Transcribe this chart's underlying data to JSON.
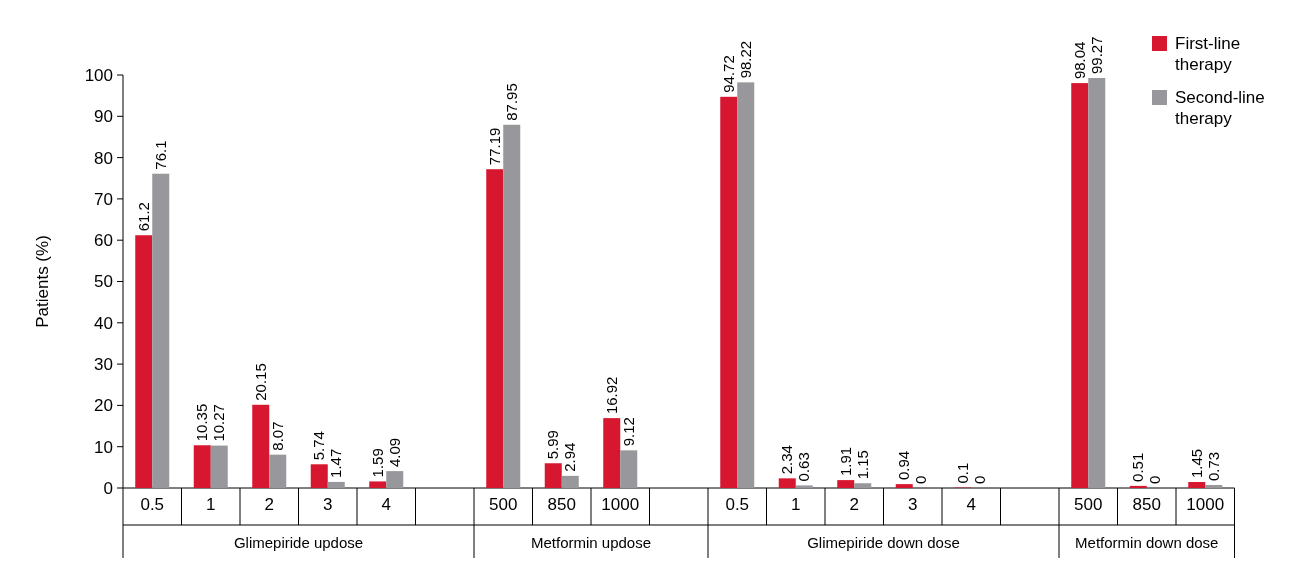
{
  "chart_data": {
    "type": "bar",
    "ylabel": "Patients (%)",
    "categories": [
      "0.5",
      "1",
      "2",
      "3",
      "4",
      null,
      "500",
      "850",
      "1000",
      null,
      "0.5",
      "1",
      "2",
      "3",
      "4",
      null,
      "500",
      "850",
      "1000"
    ],
    "series": [
      {
        "name": "First-line therapy",
        "color": "#d7172f",
        "values": [
          61.2,
          10.35,
          20.15,
          5.74,
          1.59,
          null,
          77.19,
          5.99,
          16.92,
          null,
          94.72,
          2.34,
          1.91,
          0.94,
          0.1,
          null,
          98.04,
          0.51,
          1.45
        ]
      },
      {
        "name": "Second-line therapy",
        "color": "#98989c",
        "values": [
          76.1,
          10.27,
          8.07,
          1.47,
          4.09,
          null,
          87.95,
          2.94,
          9.12,
          null,
          98.22,
          0.63,
          1.15,
          0,
          0,
          null,
          99.27,
          0,
          0.73
        ]
      }
    ],
    "annotations": [
      "Glimepiride updose",
      "Metformin updose",
      "Glimepiride down dose",
      "Metformin down dose"
    ],
    "ylim": [
      0,
      100
    ],
    "yticks": [
      0,
      10,
      20,
      30,
      40,
      50,
      60,
      70,
      80,
      90,
      100
    ],
    "data_labels": true,
    "legend": "top right"
  }
}
